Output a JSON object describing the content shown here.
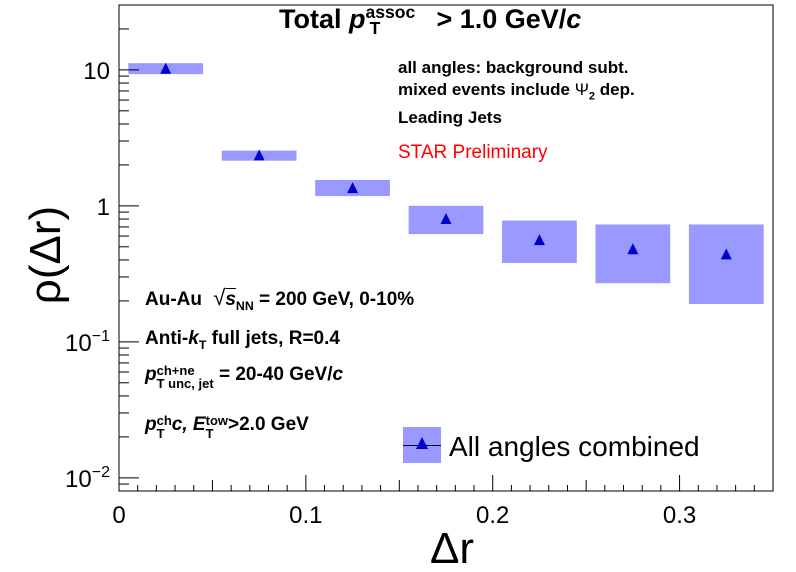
{
  "chart_data": {
    "type": "scatter",
    "title_prefix": "Total",
    "title_p": "p",
    "title_sup": "assoc",
    "title_sub": "T",
    "title_suffix": "> 1.0 GeV/",
    "title_c": "c",
    "xlabel": "Δr",
    "ylabel": "ρ(Δr)",
    "xlim": [
      0,
      0.35
    ],
    "ylim": [
      0.008,
      30
    ],
    "yscale": "log",
    "x_ticks": [
      {
        "value": 0,
        "label": "0"
      },
      {
        "value": 0.1,
        "label": "0.1"
      },
      {
        "value": 0.2,
        "label": "0.2"
      },
      {
        "value": 0.3,
        "label": "0.3"
      }
    ],
    "y_ticks": [
      {
        "value": 0.01,
        "base": "10",
        "exp": "−2"
      },
      {
        "value": 0.1,
        "base": "10",
        "exp": "−1"
      },
      {
        "value": 1,
        "base": "1",
        "exp": ""
      },
      {
        "value": 10,
        "base": "10",
        "exp": ""
      }
    ],
    "series": [
      {
        "name": "All angles combined",
        "marker_color": "#0000cc",
        "box_color": "#9999ff",
        "points": [
          {
            "x": 0.025,
            "y": 10.2,
            "xlo": 0.005,
            "xhi": 0.045,
            "ylo": 9.3,
            "yhi": 11.2
          },
          {
            "x": 0.075,
            "y": 2.35,
            "xlo": 0.055,
            "xhi": 0.095,
            "ylo": 2.15,
            "yhi": 2.55
          },
          {
            "x": 0.125,
            "y": 1.35,
            "xlo": 0.105,
            "xhi": 0.145,
            "ylo": 1.18,
            "yhi": 1.55
          },
          {
            "x": 0.175,
            "y": 0.8,
            "xlo": 0.155,
            "xhi": 0.195,
            "ylo": 0.62,
            "yhi": 1.0
          },
          {
            "x": 0.225,
            "y": 0.56,
            "xlo": 0.205,
            "xhi": 0.245,
            "ylo": 0.38,
            "yhi": 0.78
          },
          {
            "x": 0.275,
            "y": 0.48,
            "xlo": 0.255,
            "xhi": 0.295,
            "ylo": 0.27,
            "yhi": 0.73
          },
          {
            "x": 0.325,
            "y": 0.44,
            "xlo": 0.305,
            "xhi": 0.345,
            "ylo": 0.19,
            "yhi": 0.73
          }
        ]
      }
    ],
    "legend_position": "bottom-right"
  },
  "annotations": {
    "line1": "all angles: background subt.",
    "line2_prefix": "mixed events include",
    "line2_psi": "Ψ",
    "line2_sub": "2",
    "line2_suffix": "dep.",
    "line3": "Leading Jets",
    "preliminary": "STAR Preliminary",
    "system_prefix": "Au-Au",
    "sqrt": "√",
    "s": "s",
    "s_sub": "NN",
    "system_suffix": "= 200 GeV, 0-10%",
    "jets_prefix": "Anti-",
    "jets_k": "k",
    "jets_k_sub": "T",
    "jets_suffix": "full jets, R=0.4",
    "pt_p": "p",
    "pt_sup": "ch+ne",
    "pt_sub": "T unc, jet",
    "pt_suffix": "= 20-40 GeV/",
    "pt_c": "c",
    "cut_p": "p",
    "cut_p_sup": "ch",
    "cut_p_sub": "T",
    "cut_c": "c,",
    "cut_E": "E",
    "cut_E_sup": "tow",
    "cut_E_sub": "T",
    "cut_suffix": ">2.0 GeV"
  }
}
